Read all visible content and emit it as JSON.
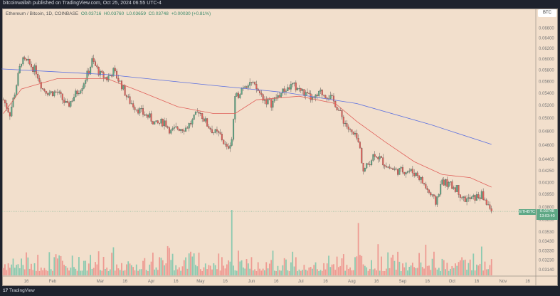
{
  "header": {
    "publisher": "bitcoinwallah published on TradingView.com, Oct 25, 2024 06:55 UTC-4"
  },
  "legend": {
    "symbol": "Ethereum / Bitcoin, 1D, COINBASE",
    "open": "O0.03716",
    "high": "H0.03760",
    "low": "L0.03659",
    "close": "C0.03748",
    "change": "+0.00030 (+0.81%)"
  },
  "currency_label": "BTC",
  "price_label": {
    "symbol": "ETHBTC",
    "price": "0.03748",
    "countdown": "13:03:40"
  },
  "footer": {
    "logo_text": "TradingView"
  },
  "colors": {
    "background": "#f2dfcc",
    "up": "#5fa886",
    "down": "#e0605a",
    "ma_fast": "#e0605a",
    "ma_slow": "#5a6fe0",
    "volume_up": "#8ccab0",
    "volume_down": "#ee9a92"
  },
  "chart_data": {
    "type": "candlestick",
    "scale": "log",
    "y_ticks": [
      "0.06600",
      "0.06400",
      "0.06200",
      "0.06000",
      "0.05800",
      "0.05600",
      "0.05400",
      "0.05200",
      "0.05000",
      "0.04800",
      "0.04600",
      "0.04400",
      "0.04250",
      "0.04100",
      "0.03950",
      "0.03800",
      "0.03650",
      "0.03530",
      "0.03430",
      "0.03330",
      "0.03230",
      "0.03140"
    ],
    "x_ticks": [
      {
        "label": "16",
        "date": "2024-01-16"
      },
      {
        "label": "Feb",
        "date": "2024-02-01"
      },
      {
        "label": "Mar",
        "date": "2024-03-01"
      },
      {
        "label": "16",
        "date": "2024-03-16"
      },
      {
        "label": "Apr",
        "date": "2024-04-01"
      },
      {
        "label": "16",
        "date": "2024-04-16"
      },
      {
        "label": "May",
        "date": "2024-05-01"
      },
      {
        "label": "16",
        "date": "2024-05-16"
      },
      {
        "label": "Jun",
        "date": "2024-06-01"
      },
      {
        "label": "16",
        "date": "2024-06-16"
      },
      {
        "label": "Jul",
        "date": "2024-07-01"
      },
      {
        "label": "16",
        "date": "2024-07-16"
      },
      {
        "label": "Aug",
        "date": "2024-08-01"
      },
      {
        "label": "16",
        "date": "2024-08-16"
      },
      {
        "label": "Sep",
        "date": "2024-09-01"
      },
      {
        "label": "16",
        "date": "2024-09-16"
      },
      {
        "label": "Oct",
        "date": "2024-10-01"
      },
      {
        "label": "16",
        "date": "2024-10-16"
      },
      {
        "label": "Nov",
        "date": "2024-11-01"
      },
      {
        "label": "16",
        "date": "2024-11-16"
      }
    ],
    "closes": [
      [
        "2024-01-02",
        0.0529
      ],
      [
        "2024-01-06",
        0.0507
      ],
      [
        "2024-01-09",
        0.0541
      ],
      [
        "2024-01-13",
        0.0597
      ],
      [
        "2024-01-17",
        0.0593
      ],
      [
        "2024-01-22",
        0.0578
      ],
      [
        "2024-01-26",
        0.0547
      ],
      [
        "2024-01-30",
        0.0541
      ],
      [
        "2024-02-04",
        0.0541
      ],
      [
        "2024-02-10",
        0.0518
      ],
      [
        "2024-02-14",
        0.0535
      ],
      [
        "2024-02-19",
        0.0553
      ],
      [
        "2024-02-23",
        0.0578
      ],
      [
        "2024-02-25",
        0.0597
      ],
      [
        "2024-03-01",
        0.0572
      ],
      [
        "2024-03-05",
        0.0565
      ],
      [
        "2024-03-09",
        0.0578
      ],
      [
        "2024-03-14",
        0.0553
      ],
      [
        "2024-03-18",
        0.0529
      ],
      [
        "2024-03-22",
        0.0518
      ],
      [
        "2024-03-27",
        0.0507
      ],
      [
        "2024-03-31",
        0.0501
      ],
      [
        "2024-04-04",
        0.049
      ],
      [
        "2024-04-09",
        0.0495
      ],
      [
        "2024-04-13",
        0.0479
      ],
      [
        "2024-04-17",
        0.0485
      ],
      [
        "2024-04-22",
        0.0485
      ],
      [
        "2024-04-26",
        0.0495
      ],
      [
        "2024-04-30",
        0.0512
      ],
      [
        "2024-05-05",
        0.049
      ],
      [
        "2024-05-09",
        0.0479
      ],
      [
        "2024-05-13",
        0.0474
      ],
      [
        "2024-05-17",
        0.0454
      ],
      [
        "2024-05-20",
        0.0469
      ],
      [
        "2024-05-22",
        0.0529
      ],
      [
        "2024-05-27",
        0.0553
      ],
      [
        "2024-05-31",
        0.0559
      ],
      [
        "2024-06-04",
        0.0547
      ],
      [
        "2024-06-09",
        0.0529
      ],
      [
        "2024-06-13",
        0.0523
      ],
      [
        "2024-06-17",
        0.0535
      ],
      [
        "2024-06-22",
        0.0547
      ],
      [
        "2024-06-26",
        0.0553
      ],
      [
        "2024-06-30",
        0.0547
      ],
      [
        "2024-07-05",
        0.0535
      ],
      [
        "2024-07-09",
        0.0529
      ],
      [
        "2024-07-13",
        0.0541
      ],
      [
        "2024-07-18",
        0.0535
      ],
      [
        "2024-07-22",
        0.0523
      ],
      [
        "2024-07-26",
        0.0501
      ],
      [
        "2024-07-31",
        0.0479
      ],
      [
        "2024-08-04",
        0.0469
      ],
      [
        "2024-08-06",
        0.0454
      ],
      [
        "2024-08-08",
        0.0425
      ],
      [
        "2024-08-10",
        0.043
      ],
      [
        "2024-08-15",
        0.0449
      ],
      [
        "2024-08-19",
        0.0439
      ],
      [
        "2024-08-23",
        0.043
      ],
      [
        "2024-08-28",
        0.0425
      ],
      [
        "2024-09-01",
        0.0425
      ],
      [
        "2024-09-05",
        0.0425
      ],
      [
        "2024-09-10",
        0.042
      ],
      [
        "2024-09-14",
        0.0407
      ],
      [
        "2024-09-18",
        0.0394
      ],
      [
        "2024-09-21",
        0.0385
      ],
      [
        "2024-09-25",
        0.0412
      ],
      [
        "2024-09-29",
        0.0407
      ],
      [
        "2024-10-04",
        0.0402
      ],
      [
        "2024-10-08",
        0.0389
      ],
      [
        "2024-10-12",
        0.0389
      ],
      [
        "2024-10-15",
        0.0391
      ],
      [
        "2024-10-19",
        0.0394
      ],
      [
        "2024-10-22",
        0.0385
      ],
      [
        "2024-10-25",
        0.03748
      ]
    ],
    "ma_fast": [
      [
        "2024-01-02",
        0.0507
      ],
      [
        "2024-01-13",
        0.0547
      ],
      [
        "2024-02-04",
        0.0565
      ],
      [
        "2024-03-05",
        0.0565
      ],
      [
        "2024-03-27",
        0.0541
      ],
      [
        "2024-04-17",
        0.0518
      ],
      [
        "2024-05-09",
        0.0507
      ],
      [
        "2024-05-22",
        0.0507
      ],
      [
        "2024-06-04",
        0.0529
      ],
      [
        "2024-06-30",
        0.0535
      ],
      [
        "2024-07-22",
        0.0523
      ],
      [
        "2024-08-04",
        0.0495
      ],
      [
        "2024-08-21",
        0.0465
      ],
      [
        "2024-09-08",
        0.0437
      ],
      [
        "2024-09-25",
        0.042
      ],
      [
        "2024-10-12",
        0.0416
      ],
      [
        "2024-10-25",
        0.0404
      ]
    ],
    "ma_slow": [
      [
        "2024-01-01",
        0.0582
      ],
      [
        "2024-03-05",
        0.0572
      ],
      [
        "2024-05-09",
        0.0553
      ],
      [
        "2024-06-22",
        0.0541
      ],
      [
        "2024-08-04",
        0.0523
      ],
      [
        "2024-09-18",
        0.049
      ],
      [
        "2024-10-25",
        0.0461
      ]
    ],
    "volume_spikes": [
      [
        "2024-05-20",
        1.0
      ],
      [
        "2024-08-05",
        0.8
      ]
    ]
  }
}
